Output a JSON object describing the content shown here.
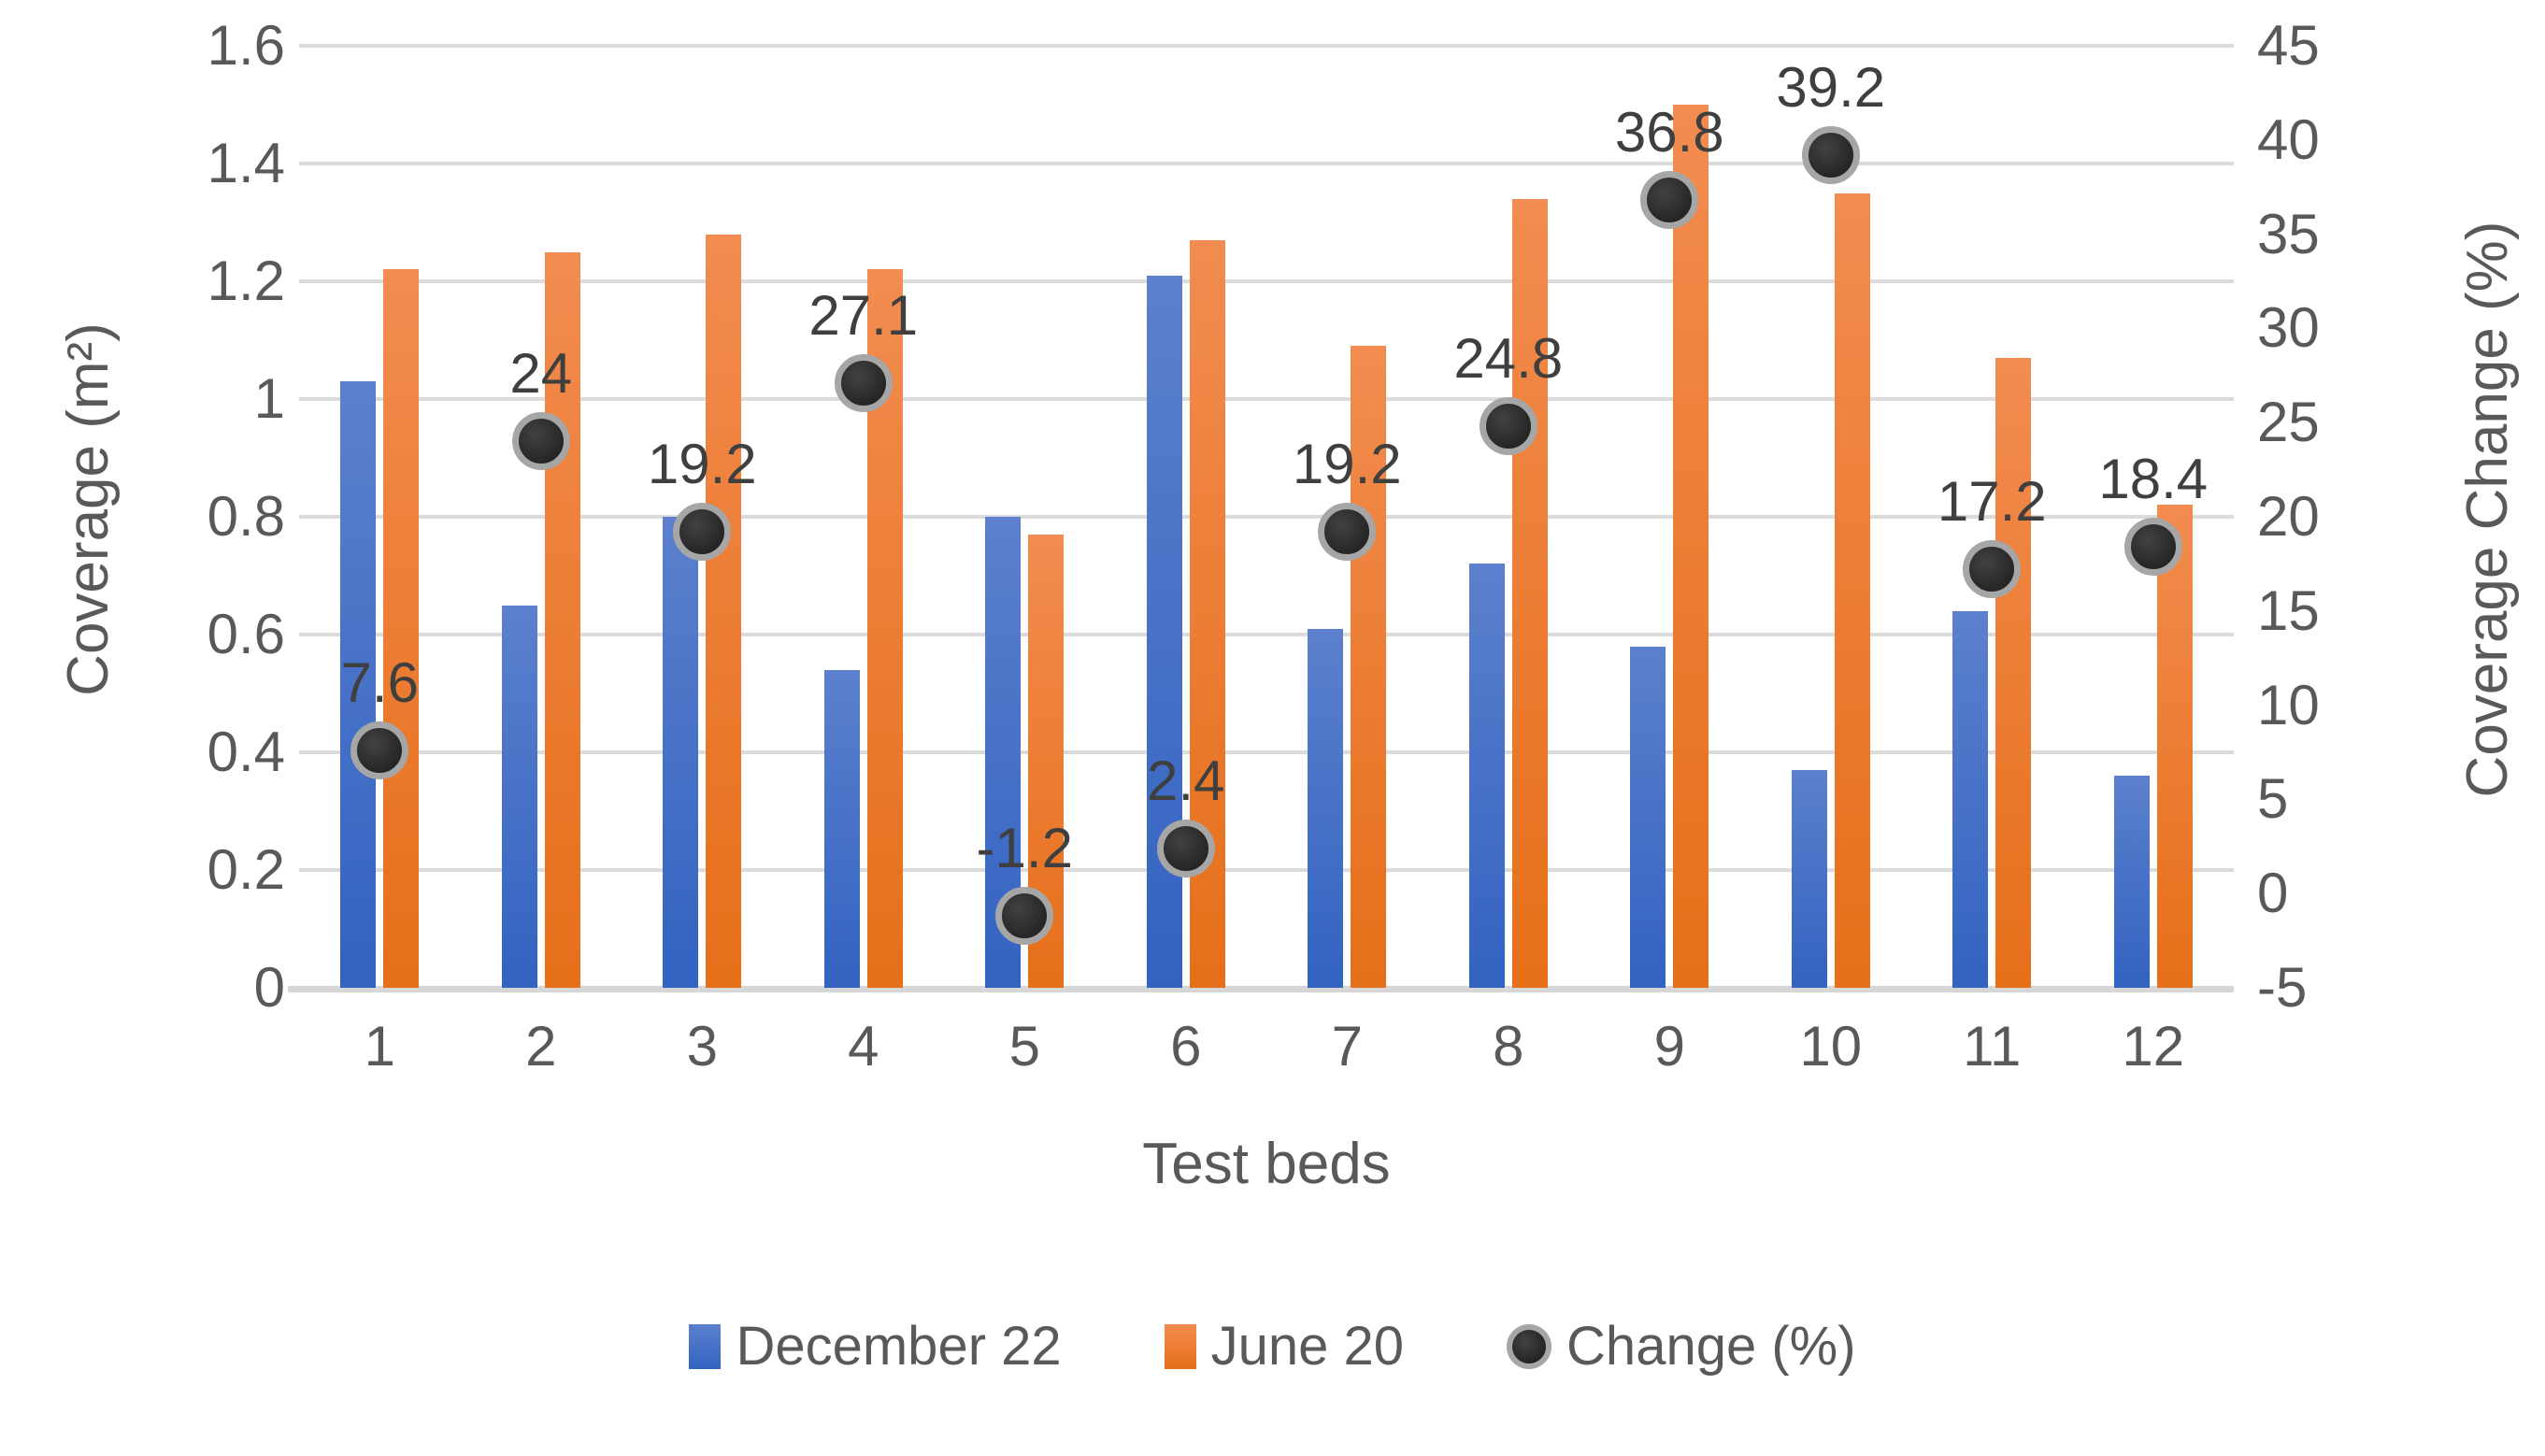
{
  "chart_data": {
    "type": "combo-bar-scatter",
    "categories": [
      "1",
      "2",
      "3",
      "4",
      "5",
      "6",
      "7",
      "8",
      "9",
      "10",
      "11",
      "12"
    ],
    "series": [
      {
        "name": "December 22",
        "type": "bar",
        "axis": "left",
        "color": "#4472C4",
        "gradient": [
          "#5C80CD",
          "#3263C1"
        ],
        "values": [
          1.03,
          0.65,
          0.8,
          0.54,
          0.8,
          1.21,
          0.61,
          0.72,
          0.58,
          0.37,
          0.64,
          0.36
        ]
      },
      {
        "name": "June 20",
        "type": "bar",
        "axis": "left",
        "color": "#ED7D31",
        "gradient": [
          "#F28C50",
          "#E66F19"
        ],
        "values": [
          1.22,
          1.25,
          1.28,
          1.22,
          0.77,
          1.27,
          1.09,
          1.34,
          1.5,
          1.35,
          1.07,
          0.82
        ]
      },
      {
        "name": "Change (%)",
        "type": "scatter",
        "axis": "right",
        "marker_fill": "#333333",
        "marker_ring": "#A6A6A6",
        "values": [
          7.6,
          24,
          19.2,
          27.1,
          -1.2,
          2.4,
          19.2,
          24.8,
          36.8,
          39.2,
          17.2,
          18.4
        ],
        "data_labels": [
          "7.6",
          "24",
          "19.2",
          "27.1",
          "-1.2",
          "2.4",
          "19.2",
          "24.8",
          "36.8",
          "39.2",
          "17.2",
          "18.4"
        ]
      }
    ],
    "left_axis": {
      "title": "Coverage (m²)",
      "min": 0,
      "max": 1.6,
      "step": 0.2,
      "ticks": [
        "1.6",
        "1.4",
        "1.2",
        "1",
        "0.8",
        "0.6",
        "0.4",
        "0.2",
        "0"
      ]
    },
    "right_axis": {
      "title": "Coverage Change (%)",
      "min": -5,
      "max": 45,
      "step": 5,
      "ticks": [
        "45",
        "40",
        "35",
        "30",
        "25",
        "20",
        "15",
        "10",
        "5",
        "0",
        "-5"
      ]
    },
    "x_axis": {
      "title": "Test beds",
      "labels": [
        "1",
        "2",
        "3",
        "4",
        "5",
        "6",
        "7",
        "8",
        "9",
        "10",
        "11",
        "12"
      ]
    },
    "legend": {
      "position": "bottom",
      "entries": [
        "December 22",
        "June 20",
        "Change (%)"
      ]
    },
    "grid": true,
    "colors": {
      "gridline": "#DBDBDB",
      "axis_line": "#D6D6D6",
      "tick_text": "#595959",
      "data_label_text": "#3F3F3F",
      "background": "#FFFFFF"
    }
  }
}
